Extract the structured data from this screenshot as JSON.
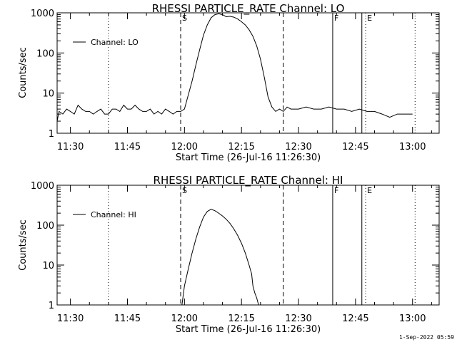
{
  "footer_timestamp": "1-Sep-2022 05:59",
  "chart_data": [
    {
      "type": "line",
      "title": "RHESSI PARTICLE_RATE Channel: LO",
      "xlabel": "Start Time (26-Jul-16 11:26:30)",
      "ylabel": "Counts/sec",
      "yscale": "log",
      "ylim": [
        1,
        1000
      ],
      "y_ticks": [
        "1",
        "10",
        "100",
        "1000"
      ],
      "xlim": [
        "11:26:30",
        "13:07:00"
      ],
      "x_ticks": [
        "11:30",
        "11:45",
        "12:00",
        "12:15",
        "12:30",
        "12:45",
        "13:00"
      ],
      "grid": false,
      "legend": "top-left",
      "series": [
        {
          "name": "Channel: LO",
          "x": [
            "11:26:30",
            "11:27:00",
            "11:28:00",
            "11:29:00",
            "11:30:00",
            "11:31:00",
            "11:32:00",
            "11:33:00",
            "11:34:00",
            "11:35:00",
            "11:36:00",
            "11:37:00",
            "11:38:00",
            "11:39:00",
            "11:40:00",
            "11:41:00",
            "11:42:00",
            "11:43:00",
            "11:44:00",
            "11:45:00",
            "11:46:00",
            "11:47:00",
            "11:48:00",
            "11:49:00",
            "11:50:00",
            "11:51:00",
            "11:52:00",
            "11:53:00",
            "11:54:00",
            "11:55:00",
            "11:56:00",
            "11:57:00",
            "11:58:00",
            "11:59:00",
            "12:00:00",
            "12:01:00",
            "12:02:00",
            "12:03:00",
            "12:04:00",
            "12:05:00",
            "12:06:00",
            "12:07:00",
            "12:08:00",
            "12:09:00",
            "12:10:00",
            "12:11:00",
            "12:12:00",
            "12:13:00",
            "12:14:00",
            "12:15:00",
            "12:16:00",
            "12:17:00",
            "12:18:00",
            "12:19:00",
            "12:20:00",
            "12:21:00",
            "12:22:00",
            "12:23:00",
            "12:24:00",
            "12:25:00",
            "12:26:00",
            "12:27:00",
            "12:28:00",
            "12:30:00",
            "12:32:00",
            "12:34:00",
            "12:36:00",
            "12:38:00",
            "12:40:00",
            "12:42:00",
            "12:44:00",
            "12:46:00",
            "12:48:00",
            "12:50:00",
            "12:52:00",
            "12:54:00",
            "12:56:00",
            "12:58:00",
            "13:00:00"
          ],
          "values": [
            2,
            3.5,
            3,
            4,
            3.5,
            3,
            5,
            4,
            3.5,
            3.5,
            3,
            3.5,
            4,
            3,
            3,
            4,
            4,
            3.5,
            5,
            4,
            4,
            5,
            4,
            3.5,
            3.5,
            4,
            3,
            3.5,
            3,
            4,
            3.5,
            3,
            3.5,
            3.5,
            4,
            9,
            20,
            50,
            120,
            280,
            500,
            750,
            900,
            950,
            900,
            800,
            820,
            780,
            700,
            600,
            500,
            380,
            260,
            150,
            70,
            25,
            8,
            4.5,
            3.5,
            4,
            3.5,
            4.5,
            4,
            4,
            4.5,
            4,
            4,
            4.5,
            4,
            4,
            3.5,
            4,
            3.5,
            3.5,
            3,
            2.5,
            3,
            3,
            3
          ]
        }
      ],
      "markers": [
        {
          "time": "11:40:00",
          "style": "dotted",
          "label": ""
        },
        {
          "time": "11:59:00",
          "style": "dashed",
          "label": "S"
        },
        {
          "time": "12:26:00",
          "style": "dashed",
          "label": ""
        },
        {
          "time": "12:39:00",
          "style": "solid",
          "label": "F"
        },
        {
          "time": "12:46:40",
          "style": "solid",
          "label": ""
        },
        {
          "time": "12:47:40",
          "style": "dotted",
          "label": "E"
        },
        {
          "time": "13:00:40",
          "style": "dotted",
          "label": ""
        }
      ]
    },
    {
      "type": "line",
      "title": "RHESSI PARTICLE_RATE Channel: HI",
      "xlabel": "Start Time (26-Jul-16 11:26:30)",
      "ylabel": "Counts/sec",
      "yscale": "log",
      "ylim": [
        1,
        1000
      ],
      "y_ticks": [
        "1",
        "10",
        "100",
        "1000"
      ],
      "xlim": [
        "11:26:30",
        "13:07:00"
      ],
      "x_ticks": [
        "11:30",
        "11:45",
        "12:00",
        "12:15",
        "12:30",
        "12:45",
        "13:00"
      ],
      "grid": false,
      "legend": "top-left",
      "series": [
        {
          "name": "Channel: HI",
          "x": [
            "11:59:20",
            "12:00:00",
            "12:01:00",
            "12:02:00",
            "12:03:00",
            "12:04:00",
            "12:05:00",
            "12:06:00",
            "12:07:00",
            "12:08:00",
            "12:09:00",
            "12:10:00",
            "12:11:00",
            "12:12:00",
            "12:13:00",
            "12:14:00",
            "12:15:00",
            "12:16:00",
            "12:17:00",
            "12:17:40",
            "12:18:00",
            "12:18:30",
            "12:19:00",
            "12:19:30"
          ],
          "values": [
            1,
            3,
            8,
            20,
            45,
            90,
            160,
            220,
            250,
            230,
            200,
            170,
            140,
            110,
            80,
            55,
            35,
            20,
            10,
            6,
            3,
            2,
            1.5,
            1
          ]
        }
      ],
      "markers": [
        {
          "time": "11:40:00",
          "style": "dotted",
          "label": ""
        },
        {
          "time": "11:59:00",
          "style": "dashed",
          "label": "S"
        },
        {
          "time": "12:26:00",
          "style": "dashed",
          "label": ""
        },
        {
          "time": "12:39:00",
          "style": "solid",
          "label": "F"
        },
        {
          "time": "12:46:40",
          "style": "solid",
          "label": ""
        },
        {
          "time": "12:47:40",
          "style": "dotted",
          "label": "E"
        },
        {
          "time": "13:00:40",
          "style": "dotted",
          "label": ""
        }
      ]
    }
  ]
}
